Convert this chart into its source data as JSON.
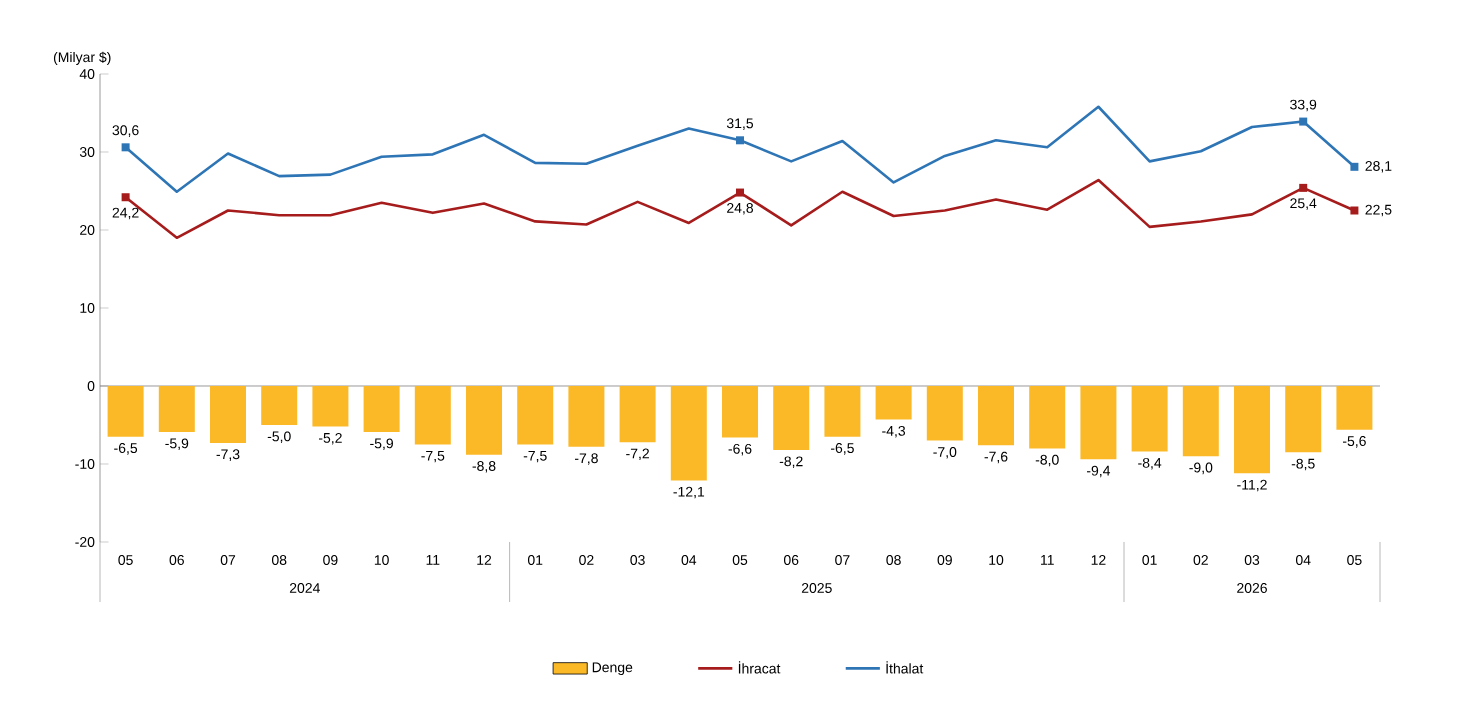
{
  "chart_data": {
    "type": "bar",
    "ylabel": "(Milyar $)",
    "categories": [
      "05",
      "06",
      "07",
      "08",
      "09",
      "10",
      "11",
      "12",
      "01",
      "02",
      "03",
      "04",
      "05",
      "06",
      "07",
      "08",
      "09",
      "10",
      "11",
      "12",
      "01",
      "02",
      "03",
      "04",
      "05"
    ],
    "annotations": [
      "2024",
      "2025",
      "2026"
    ],
    "ylim": [
      -20,
      40
    ],
    "yticks": [
      -20,
      -10,
      0,
      10,
      20,
      30,
      40
    ],
    "legend": "bottom",
    "series": [
      {
        "name": "Denge",
        "color": "#fbb928",
        "values": [
          -6.5,
          -5.9,
          -7.3,
          -5.0,
          -5.2,
          -5.9,
          -7.5,
          -8.8,
          -7.5,
          -7.8,
          -7.2,
          -12.1,
          -6.6,
          -8.2,
          -6.5,
          -4.3,
          -7.0,
          -7.6,
          -8.0,
          -9.4,
          -8.4,
          -9.0,
          -11.2,
          -8.5,
          -5.6
        ],
        "value_labels": [
          "-6,5",
          "-5,9",
          "-7,3",
          "-5,0",
          "-5,2",
          "-5,9",
          "-7,5",
          "-8,8",
          "-7,5",
          "-7,8",
          "-7,2",
          "-12,1",
          "-6,6",
          "-8,2",
          "-6,5",
          "-4,3",
          "-7,0",
          "-7,6",
          "-8,0",
          "-9,4",
          "-8,4",
          "-9,0",
          "-11,2",
          "-8,5",
          "-5,6"
        ]
      },
      {
        "name": "İhracat",
        "type": "line",
        "color": "#a61c1c",
        "values": [
          24.2,
          19.0,
          22.5,
          21.9,
          21.9,
          23.5,
          22.2,
          23.4,
          21.1,
          20.7,
          23.6,
          20.9,
          24.8,
          20.6,
          24.9,
          21.8,
          22.5,
          23.9,
          22.6,
          26.4,
          20.4,
          21.1,
          22.0,
          25.4,
          22.5
        ],
        "value_labels": [
          "24,2",
          null,
          null,
          null,
          null,
          null,
          null,
          null,
          null,
          null,
          null,
          null,
          "24,8",
          null,
          null,
          null,
          null,
          null,
          null,
          null,
          null,
          null,
          null,
          "25,4",
          "22,5"
        ]
      },
      {
        "name": "İthalat",
        "type": "line",
        "color": "#2e75b6",
        "values": [
          30.6,
          24.9,
          29.8,
          26.9,
          27.1,
          29.4,
          29.7,
          32.2,
          28.6,
          28.5,
          30.8,
          33.0,
          31.5,
          28.8,
          31.4,
          26.1,
          29.5,
          31.5,
          30.6,
          35.8,
          28.8,
          30.1,
          33.2,
          33.9,
          28.1
        ],
        "value_labels": [
          "30,6",
          null,
          null,
          null,
          null,
          null,
          null,
          null,
          null,
          null,
          null,
          null,
          "31,5",
          null,
          null,
          null,
          null,
          null,
          null,
          null,
          null,
          null,
          null,
          "33,9",
          "28,1"
        ]
      }
    ]
  }
}
